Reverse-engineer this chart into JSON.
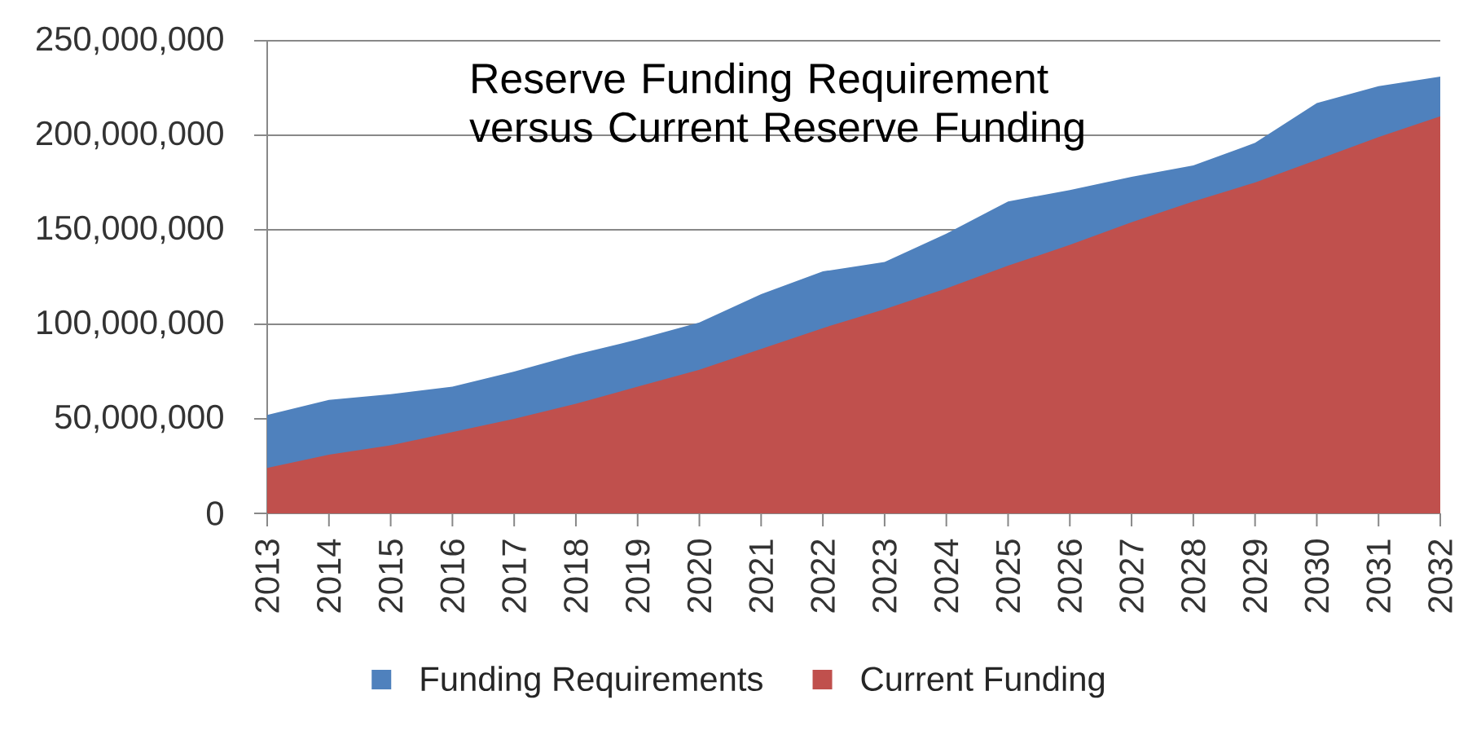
{
  "chart_data": {
    "type": "area",
    "title": "Reserve Funding Requirement versus Current Reserve Funding",
    "categories": [
      "2013",
      "2014",
      "2015",
      "2016",
      "2017",
      "2018",
      "2019",
      "2020",
      "2021",
      "2022",
      "2023",
      "2024",
      "2025",
      "2026",
      "2027",
      "2028",
      "2029",
      "2030",
      "2031",
      "2032"
    ],
    "series": [
      {
        "name": "Funding Requirements",
        "color": "#4f81bd",
        "values": [
          52000000,
          60000000,
          63000000,
          67000000,
          75000000,
          84000000,
          92000000,
          101000000,
          116000000,
          128000000,
          133000000,
          148000000,
          165000000,
          171000000,
          178000000,
          184000000,
          196000000,
          217000000,
          226000000,
          231000000
        ]
      },
      {
        "name": "Current Funding",
        "color": "#c0504d",
        "values": [
          24000000,
          31000000,
          36000000,
          43000000,
          50000000,
          58000000,
          67000000,
          76000000,
          87000000,
          98000000,
          108000000,
          119000000,
          131000000,
          142000000,
          154000000,
          165000000,
          175000000,
          187000000,
          199000000,
          210000000
        ]
      }
    ],
    "ylim": [
      0,
      250000000
    ],
    "yticks": [
      0,
      {
        "value": 50000000,
        "label": "50,000,000"
      },
      {
        "value": 100000000,
        "label": "100,000,000"
      },
      {
        "value": 150000000,
        "label": "150,000,000"
      },
      {
        "value": 200000000,
        "label": "200,000,000"
      },
      {
        "value": 250000000,
        "label": "250,000,000"
      }
    ],
    "grid": "y",
    "legend": "bottom"
  }
}
